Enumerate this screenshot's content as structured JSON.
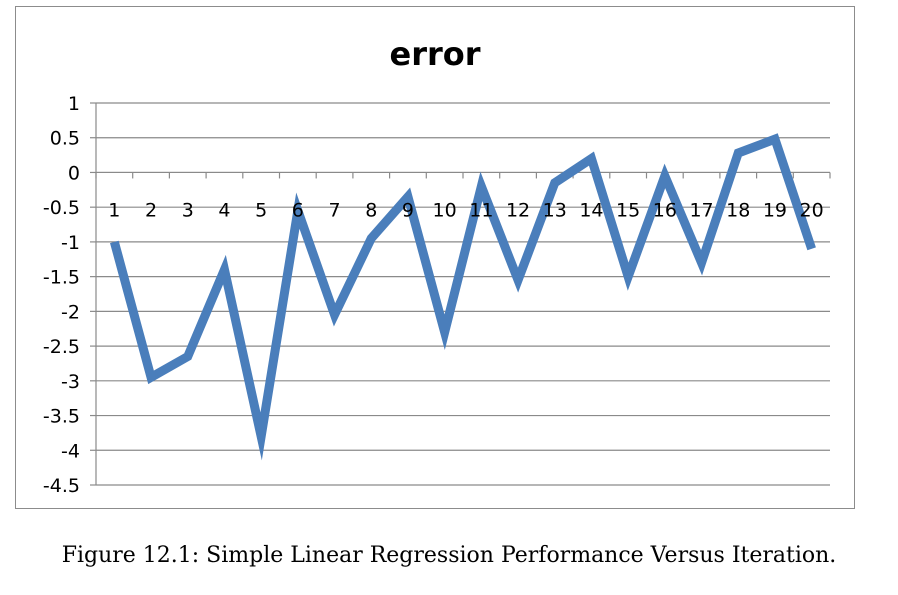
{
  "chart_data": {
    "type": "line",
    "title": "error",
    "x": [
      1,
      2,
      3,
      4,
      5,
      6,
      7,
      8,
      9,
      10,
      11,
      12,
      13,
      14,
      15,
      16,
      17,
      18,
      19,
      20
    ],
    "series": [
      {
        "values": [
          -1.0,
          -2.95,
          -2.65,
          -1.4,
          -3.8,
          -0.55,
          -2.05,
          -0.95,
          -0.35,
          -2.3,
          -0.2,
          -1.55,
          -0.15,
          0.2,
          -1.5,
          -0.05,
          -1.3,
          0.28,
          0.48,
          -1.1
        ]
      }
    ],
    "ylim": [
      -4.5,
      1
    ],
    "yticks": [
      1,
      0.5,
      0,
      -0.5,
      -1,
      -1.5,
      -2,
      -2.5,
      -3,
      -3.5,
      -4,
      -4.5
    ],
    "ytick_labels": [
      "1",
      "0.5",
      "0",
      "-0.5",
      "-1",
      "-1.5",
      "-2",
      "-2.5",
      "-3",
      "-3.5",
      "-4",
      "-4.5"
    ],
    "xtick_labels": [
      "1",
      "2",
      "3",
      "4",
      "5",
      "6",
      "7",
      "8",
      "9",
      "10",
      "11",
      "12",
      "13",
      "14",
      "15",
      "16",
      "17",
      "18",
      "19",
      "20"
    ],
    "grid": true,
    "legend": "none",
    "line_color": "#4a7ebb"
  },
  "caption": "Figure 12.1: Simple Linear Regression Performance Versus Iteration."
}
